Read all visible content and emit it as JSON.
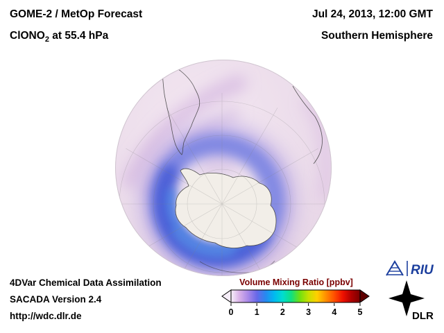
{
  "header": {
    "product": "GOME-2 / MetOp Forecast",
    "species": "ClONO",
    "species_sub": "2",
    "level": " at 55.4 hPa",
    "datetime": "Jul 24, 2013, 12:00 GMT",
    "region": "Southern Hemisphere"
  },
  "colorbar": {
    "title": "Volume Mixing Ratio [ppbv]",
    "ticks": [
      "0",
      "1",
      "2",
      "3",
      "4",
      "5"
    ],
    "colors": [
      "#f8f0fa",
      "#d8b0e8",
      "#a888e8",
      "#6868e8",
      "#2888f0",
      "#00b8f0",
      "#00ddd0",
      "#10e080",
      "#70e010",
      "#c8e000",
      "#ffd000",
      "#ff9000",
      "#ff5000",
      "#ee1000",
      "#b00000",
      "#7a0000"
    ]
  },
  "footer": {
    "line1": "4DVar Chemical Data Assimilation",
    "line2": "SACADA Version 2.4",
    "line3": "http://wdc.dlr.de"
  },
  "logos": {
    "riu": "RIU",
    "dlr": "DLR"
  }
}
